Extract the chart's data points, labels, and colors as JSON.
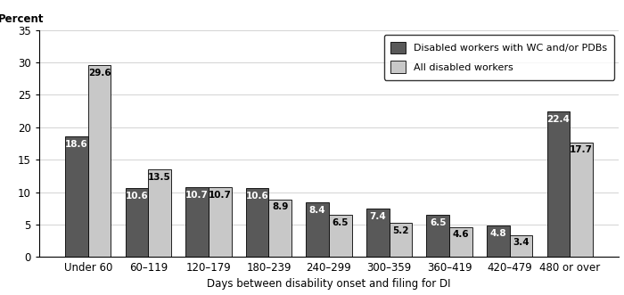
{
  "categories": [
    "Under 60",
    "60–119",
    "120–179",
    "180–239",
    "240–299",
    "300–359",
    "360–419",
    "420–479",
    "480 or over"
  ],
  "wc_pdb_values": [
    18.6,
    10.6,
    10.7,
    10.6,
    8.4,
    7.4,
    6.5,
    4.8,
    22.4
  ],
  "all_disabled_values": [
    29.6,
    13.5,
    10.7,
    8.9,
    6.5,
    5.2,
    4.6,
    3.4,
    17.7
  ],
  "wc_pdb_color": "#595959",
  "all_disabled_color": "#c8c8c8",
  "ylabel": "Percent",
  "xlabel": "Days between disability onset and filing for DI",
  "ylim": [
    0,
    35
  ],
  "yticks": [
    0,
    5,
    10,
    15,
    20,
    25,
    30,
    35
  ],
  "legend_labels": [
    "Disabled workers with WC and/or PDBs",
    "All disabled workers"
  ],
  "bar_width": 0.38,
  "figsize": [
    7.0,
    3.31
  ],
  "dpi": 100,
  "label_fontsize": 7.5,
  "axis_fontsize": 8.5,
  "xlabel_fontsize": 8.5
}
